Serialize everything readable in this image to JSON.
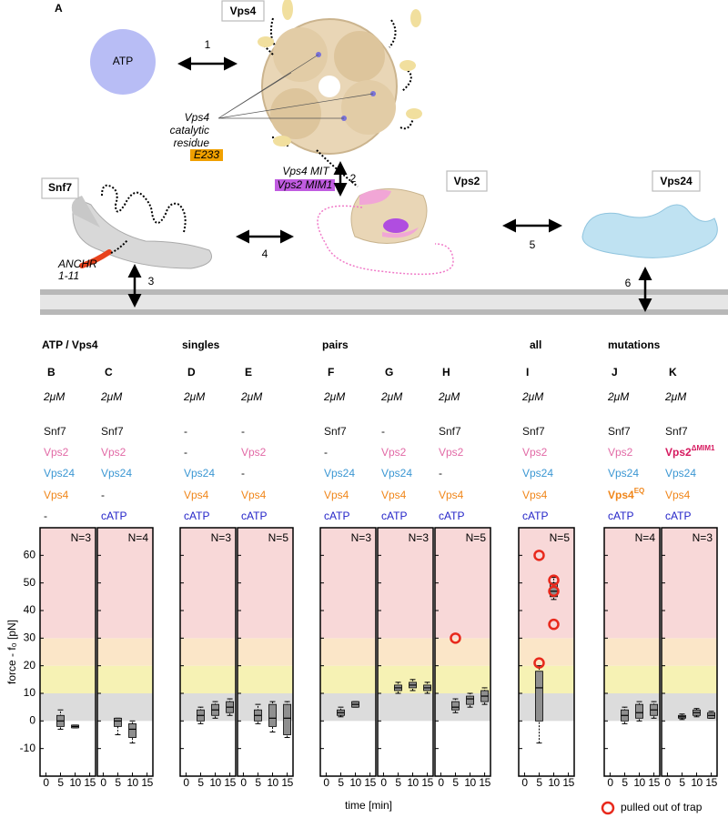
{
  "diagram": {
    "panel": "A",
    "vps4": "Vps4",
    "atp": "ATP",
    "arrow1": "1",
    "catalytic": [
      "Vps4",
      "catalytic",
      "residue"
    ],
    "residue": "E233",
    "mit": "Vps4 MIT",
    "mim1": "Vps2 MIM1",
    "arrow2": "2",
    "snf7": "Snf7",
    "vps2": "Vps2",
    "vps24": "Vps24",
    "arrow4": "4",
    "arrow5": "5",
    "anchr": [
      "ANCHR",
      "1-11"
    ],
    "arrow3": "3",
    "arrow6": "6"
  },
  "groups": [
    "ATP / Vps4",
    "singles",
    "pairs",
    "all",
    "mutations"
  ],
  "xlabel": "time [min]",
  "legend": "pulled out of trap",
  "chart_data": [
    {
      "type": "box",
      "panel": "B",
      "concentration": "2μM",
      "components": [
        {
          "text": "Snf7",
          "color": "#111111"
        },
        {
          "text": "Vps2",
          "color": "#e26aa6"
        },
        {
          "text": "Vps24",
          "color": "#3b97d3"
        },
        {
          "text": "Vps4",
          "color": "#f0861a"
        },
        {
          "text": "-",
          "color": "#111111"
        }
      ],
      "annotation": "N=3",
      "ylabel": "force - f₀ [pN]",
      "xlim": [
        -2,
        17
      ],
      "xticks": [
        0,
        5,
        10,
        15
      ],
      "ylim": [
        -20,
        70
      ],
      "yticks": [
        -10,
        0,
        10,
        20,
        30,
        40,
        50,
        60
      ],
      "bands": [
        {
          "from": 0,
          "to": 10,
          "color": "#dcdcdc"
        },
        {
          "from": 10,
          "to": 20,
          "color": "#f6f2b4"
        },
        {
          "from": 20,
          "to": 30,
          "color": "#fbe6c8"
        },
        {
          "from": 30,
          "to": 70,
          "color": "#f8d8d8"
        }
      ],
      "boxes": {
        "x": [
          5,
          10
        ],
        "low": [
          -3,
          -2.5
        ],
        "q1": [
          -2,
          -2.5
        ],
        "median": [
          0,
          -2
        ],
        "q3": [
          2,
          -1.5
        ],
        "high": [
          4,
          -1.5
        ]
      }
    },
    {
      "type": "box",
      "panel": "C",
      "concentration": "2μM",
      "components": [
        {
          "text": "Snf7",
          "color": "#111111"
        },
        {
          "text": "Vps2",
          "color": "#e26aa6"
        },
        {
          "text": "Vps24",
          "color": "#3b97d3"
        },
        {
          "text": "-",
          "color": "#111111"
        },
        {
          "text": "cATP",
          "color": "#2424c8"
        }
      ],
      "annotation": "N=4",
      "xlim": [
        -2,
        17
      ],
      "xticks": [
        0,
        5,
        10,
        15
      ],
      "ylim": [
        -20,
        70
      ],
      "yticks": [
        -10,
        0,
        10,
        20,
        30,
        40,
        50,
        60
      ],
      "bands": [
        {
          "from": 0,
          "to": 10,
          "color": "#dcdcdc"
        },
        {
          "from": 10,
          "to": 20,
          "color": "#f6f2b4"
        },
        {
          "from": 20,
          "to": 30,
          "color": "#fbe6c8"
        },
        {
          "from": 30,
          "to": 70,
          "color": "#f8d8d8"
        }
      ],
      "boxes": {
        "x": [
          5,
          10
        ],
        "low": [
          -5,
          -8
        ],
        "q1": [
          -2,
          -6
        ],
        "median": [
          0,
          -3
        ],
        "q3": [
          1,
          -1
        ],
        "high": [
          1,
          0
        ]
      }
    },
    {
      "type": "box",
      "panel": "D",
      "concentration": "2μM",
      "components": [
        {
          "text": "-",
          "color": "#111111"
        },
        {
          "text": "-",
          "color": "#111111"
        },
        {
          "text": "Vps24",
          "color": "#3b97d3"
        },
        {
          "text": "Vps4",
          "color": "#f0861a"
        },
        {
          "text": "cATP",
          "color": "#2424c8"
        }
      ],
      "annotation": "N=3",
      "xlim": [
        -2,
        17
      ],
      "xticks": [
        0,
        5,
        10,
        15
      ],
      "ylim": [
        -20,
        70
      ],
      "yticks": [
        -10,
        0,
        10,
        20,
        30,
        40,
        50,
        60
      ],
      "bands": [
        {
          "from": 0,
          "to": 10,
          "color": "#dcdcdc"
        },
        {
          "from": 10,
          "to": 20,
          "color": "#f6f2b4"
        },
        {
          "from": 20,
          "to": 30,
          "color": "#fbe6c8"
        },
        {
          "from": 30,
          "to": 70,
          "color": "#f8d8d8"
        }
      ],
      "boxes": {
        "x": [
          5,
          10,
          15
        ],
        "low": [
          -1,
          1,
          2
        ],
        "q1": [
          0,
          2,
          3
        ],
        "median": [
          2,
          4,
          5
        ],
        "q3": [
          4,
          6,
          7
        ],
        "high": [
          5,
          7,
          8
        ]
      }
    },
    {
      "type": "box",
      "panel": "E",
      "concentration": "2μM",
      "components": [
        {
          "text": "-",
          "color": "#111111"
        },
        {
          "text": "Vps2",
          "color": "#e26aa6"
        },
        {
          "text": "-",
          "color": "#111111"
        },
        {
          "text": "Vps4",
          "color": "#f0861a"
        },
        {
          "text": "cATP",
          "color": "#2424c8"
        }
      ],
      "annotation": "N=5",
      "xlim": [
        -2,
        17
      ],
      "xticks": [
        0,
        5,
        10,
        15
      ],
      "ylim": [
        -20,
        70
      ],
      "yticks": [
        -10,
        0,
        10,
        20,
        30,
        40,
        50,
        60
      ],
      "bands": [
        {
          "from": 0,
          "to": 10,
          "color": "#dcdcdc"
        },
        {
          "from": 10,
          "to": 20,
          "color": "#f6f2b4"
        },
        {
          "from": 20,
          "to": 30,
          "color": "#fbe6c8"
        },
        {
          "from": 30,
          "to": 70,
          "color": "#f8d8d8"
        }
      ],
      "boxes": {
        "x": [
          5,
          10,
          15
        ],
        "low": [
          -1,
          -4,
          -6
        ],
        "q1": [
          0,
          -2,
          -5
        ],
        "median": [
          2,
          1,
          1
        ],
        "q3": [
          4,
          6,
          6
        ],
        "high": [
          6,
          7,
          7
        ]
      }
    },
    {
      "type": "box",
      "panel": "F",
      "concentration": "2μM",
      "components": [
        {
          "text": "Snf7",
          "color": "#111111"
        },
        {
          "text": "-",
          "color": "#111111"
        },
        {
          "text": "Vps24",
          "color": "#3b97d3"
        },
        {
          "text": "Vps4",
          "color": "#f0861a"
        },
        {
          "text": "cATP",
          "color": "#2424c8"
        }
      ],
      "annotation": "N=3",
      "xlim": [
        -2,
        17
      ],
      "xticks": [
        0,
        5,
        10,
        15
      ],
      "ylim": [
        -20,
        70
      ],
      "yticks": [
        -10,
        0,
        10,
        20,
        30,
        40,
        50,
        60
      ],
      "bands": [
        {
          "from": 0,
          "to": 10,
          "color": "#dcdcdc"
        },
        {
          "from": 10,
          "to": 20,
          "color": "#f6f2b4"
        },
        {
          "from": 20,
          "to": 30,
          "color": "#fbe6c8"
        },
        {
          "from": 30,
          "to": 70,
          "color": "#f8d8d8"
        }
      ],
      "boxes": {
        "x": [
          5,
          10
        ],
        "low": [
          1.5,
          5
        ],
        "q1": [
          2,
          5
        ],
        "median": [
          3,
          6
        ],
        "q3": [
          4,
          7
        ],
        "high": [
          5,
          7
        ]
      }
    },
    {
      "type": "box",
      "panel": "G",
      "concentration": "2μM",
      "components": [
        {
          "text": "-",
          "color": "#111111"
        },
        {
          "text": "Vps2",
          "color": "#e26aa6"
        },
        {
          "text": "Vps24",
          "color": "#3b97d3"
        },
        {
          "text": "Vps4",
          "color": "#f0861a"
        },
        {
          "text": "cATP",
          "color": "#2424c8"
        }
      ],
      "annotation": "N=3",
      "xlim": [
        -2,
        17
      ],
      "xticks": [
        0,
        5,
        10,
        15
      ],
      "ylim": [
        -20,
        70
      ],
      "yticks": [
        -10,
        0,
        10,
        20,
        30,
        40,
        50,
        60
      ],
      "bands": [
        {
          "from": 0,
          "to": 10,
          "color": "#dcdcdc"
        },
        {
          "from": 10,
          "to": 20,
          "color": "#f6f2b4"
        },
        {
          "from": 20,
          "to": 30,
          "color": "#fbe6c8"
        },
        {
          "from": 30,
          "to": 70,
          "color": "#f8d8d8"
        }
      ],
      "boxes": {
        "x": [
          5,
          10,
          15
        ],
        "low": [
          10,
          11,
          10
        ],
        "q1": [
          11,
          12,
          11
        ],
        "median": [
          12,
          13,
          12
        ],
        "q3": [
          13,
          14,
          13
        ],
        "high": [
          14,
          15,
          14
        ]
      }
    },
    {
      "type": "box",
      "panel": "H",
      "concentration": "2μM",
      "components": [
        {
          "text": "Snf7",
          "color": "#111111"
        },
        {
          "text": "Vps2",
          "color": "#e26aa6"
        },
        {
          "text": "-",
          "color": "#111111"
        },
        {
          "text": "Vps4",
          "color": "#f0861a"
        },
        {
          "text": "cATP",
          "color": "#2424c8"
        }
      ],
      "annotation": "N=5",
      "xlim": [
        -2,
        17
      ],
      "xticks": [
        0,
        5,
        10,
        15
      ],
      "ylim": [
        -20,
        70
      ],
      "yticks": [
        -10,
        0,
        10,
        20,
        30,
        40,
        50,
        60
      ],
      "bands": [
        {
          "from": 0,
          "to": 10,
          "color": "#dcdcdc"
        },
        {
          "from": 10,
          "to": 20,
          "color": "#f6f2b4"
        },
        {
          "from": 20,
          "to": 30,
          "color": "#fbe6c8"
        },
        {
          "from": 30,
          "to": 70,
          "color": "#f8d8d8"
        }
      ],
      "boxes": {
        "x": [
          5,
          10,
          15
        ],
        "low": [
          3,
          5,
          6
        ],
        "q1": [
          4,
          6,
          7
        ],
        "median": [
          5,
          8,
          9
        ],
        "q3": [
          7,
          9,
          11
        ],
        "high": [
          8,
          10,
          12
        ]
      },
      "outliers": {
        "x": [
          5
        ],
        "values": [
          30
        ]
      }
    },
    {
      "type": "box",
      "panel": "I",
      "concentration": "2μM",
      "components": [
        {
          "text": "Snf7",
          "color": "#111111"
        },
        {
          "text": "Vps2",
          "color": "#e26aa6"
        },
        {
          "text": "Vps24",
          "color": "#3b97d3"
        },
        {
          "text": "Vps4",
          "color": "#f0861a"
        },
        {
          "text": "cATP",
          "color": "#2424c8"
        }
      ],
      "annotation": "N=5",
      "xlim": [
        -2,
        17
      ],
      "xticks": [
        0,
        5,
        10,
        15
      ],
      "ylim": [
        -20,
        70
      ],
      "yticks": [
        -10,
        0,
        10,
        20,
        30,
        40,
        50,
        60
      ],
      "bands": [
        {
          "from": 0,
          "to": 10,
          "color": "#dcdcdc"
        },
        {
          "from": 10,
          "to": 20,
          "color": "#f6f2b4"
        },
        {
          "from": 20,
          "to": 30,
          "color": "#fbe6c8"
        },
        {
          "from": 30,
          "to": 70,
          "color": "#f8d8d8"
        }
      ],
      "boxes": {
        "x": [
          5,
          10
        ],
        "low": [
          -8,
          44
        ],
        "q1": [
          0,
          45
        ],
        "median": [
          12,
          47
        ],
        "q3": [
          18,
          50
        ],
        "high": [
          20,
          52
        ]
      },
      "outliers": {
        "x": [
          5,
          5,
          10,
          10,
          10
        ],
        "values": [
          60,
          21,
          51,
          47,
          35
        ]
      }
    },
    {
      "type": "box",
      "panel": "J",
      "concentration": "2μM",
      "components": [
        {
          "text": "Snf7",
          "color": "#111111"
        },
        {
          "text": "Vps2",
          "color": "#e26aa6"
        },
        {
          "text": "Vps24",
          "color": "#3b97d3"
        },
        {
          "text": "Vps4",
          "sup": "EQ",
          "bold": true,
          "color": "#f0861a"
        },
        {
          "text": "cATP",
          "color": "#2424c8"
        }
      ],
      "annotation": "N=4",
      "xlim": [
        -2,
        17
      ],
      "xticks": [
        0,
        5,
        10,
        15
      ],
      "ylim": [
        -20,
        70
      ],
      "yticks": [
        -10,
        0,
        10,
        20,
        30,
        40,
        50,
        60
      ],
      "bands": [
        {
          "from": 0,
          "to": 10,
          "color": "#dcdcdc"
        },
        {
          "from": 10,
          "to": 20,
          "color": "#f6f2b4"
        },
        {
          "from": 20,
          "to": 30,
          "color": "#fbe6c8"
        },
        {
          "from": 30,
          "to": 70,
          "color": "#f8d8d8"
        }
      ],
      "boxes": {
        "x": [
          5,
          10,
          15
        ],
        "low": [
          -1,
          0,
          1
        ],
        "q1": [
          0,
          1,
          2
        ],
        "median": [
          2,
          3,
          4
        ],
        "q3": [
          4,
          6,
          6
        ],
        "high": [
          5,
          7,
          7
        ]
      }
    },
    {
      "type": "box",
      "panel": "K",
      "concentration": "2μM",
      "components": [
        {
          "text": "Snf7",
          "color": "#111111"
        },
        {
          "text": "Vps2",
          "sup": "ΔMIM1",
          "bold": true,
          "color": "#d6195f"
        },
        {
          "text": "Vps24",
          "color": "#3b97d3"
        },
        {
          "text": "Vps4",
          "color": "#f0861a"
        },
        {
          "text": "cATP",
          "color": "#2424c8"
        }
      ],
      "annotation": "N=3",
      "xlim": [
        -2,
        17
      ],
      "xticks": [
        0,
        5,
        10,
        15
      ],
      "ylim": [
        -20,
        70
      ],
      "yticks": [
        -10,
        0,
        10,
        20,
        30,
        40,
        50,
        60
      ],
      "bands": [
        {
          "from": 0,
          "to": 10,
          "color": "#dcdcdc"
        },
        {
          "from": 10,
          "to": 20,
          "color": "#f6f2b4"
        },
        {
          "from": 20,
          "to": 30,
          "color": "#fbe6c8"
        },
        {
          "from": 30,
          "to": 70,
          "color": "#f8d8d8"
        }
      ],
      "boxes": {
        "x": [
          5,
          10,
          15
        ],
        "low": [
          0.5,
          1.5,
          1
        ],
        "q1": [
          1,
          2,
          1
        ],
        "median": [
          1.5,
          3,
          2
        ],
        "q3": [
          2,
          4,
          3
        ],
        "high": [
          2.5,
          4.5,
          3.5
        ]
      }
    }
  ]
}
